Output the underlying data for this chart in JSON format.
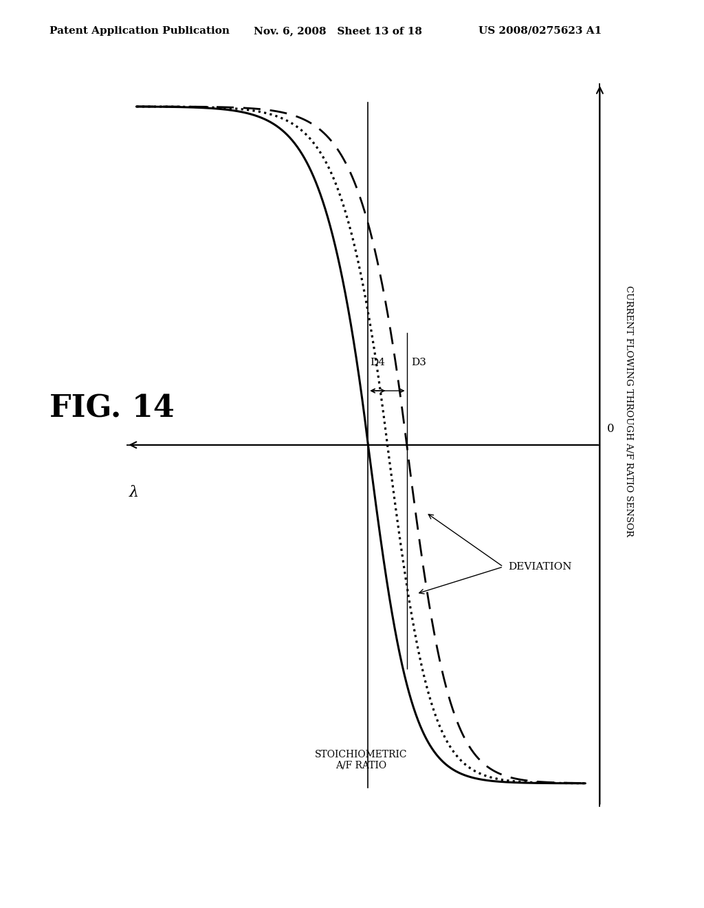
{
  "title": "FIG. 14",
  "header_left": "Patent Application Publication",
  "header_center": "Nov. 6, 2008   Sheet 13 of 18",
  "header_right": "US 2008/0275623 A1",
  "ylabel": "CURRENT FLOWING THROUGH A/F RATIO SENSOR",
  "xlabel": "λ",
  "stoich_label": "STOICHIOMETRIC\nA/F RATIO",
  "zero_label": "0",
  "deviation_label": "DEVIATION",
  "D3_label": "D3",
  "D4_label": "D4",
  "bg_color": "#ffffff",
  "fig_label_fontsize": 32,
  "header_fontsize": 11
}
